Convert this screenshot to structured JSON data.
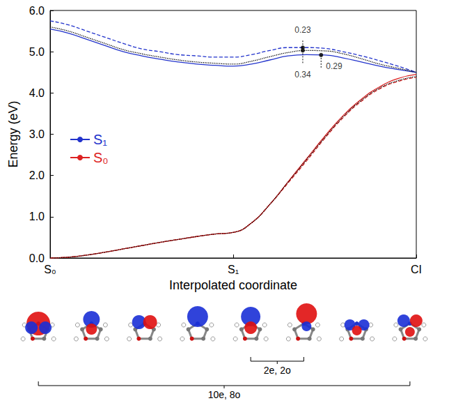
{
  "chart_data": {
    "type": "line",
    "x_label": "Interpolated coordinate",
    "y_label": "Energy (eV)",
    "xlim": [
      0,
      2
    ],
    "xticks": [
      {
        "value": 0,
        "label": "S₀"
      },
      {
        "value": 1,
        "label": "S₁"
      },
      {
        "value": 2,
        "label": "CI"
      }
    ],
    "ylim": [
      0,
      6
    ],
    "yticks": [
      {
        "value": 0,
        "label": "0.0"
      },
      {
        "value": 1,
        "label": "1.0"
      },
      {
        "value": 2,
        "label": "2.0"
      },
      {
        "value": 3,
        "label": "3.0"
      },
      {
        "value": 4,
        "label": "4.0"
      },
      {
        "value": 5,
        "label": "5.0"
      },
      {
        "value": 6,
        "label": "6.0"
      }
    ],
    "legend": "left",
    "x": [
      0,
      0.1,
      0.2,
      0.3,
      0.4,
      0.5,
      0.6,
      0.7,
      0.8,
      0.9,
      1.0,
      1.1,
      1.2,
      1.3,
      1.4,
      1.5,
      1.6,
      1.7,
      1.8,
      1.9,
      2.0
    ],
    "series": [
      {
        "name": "S₁",
        "color": "#2233cc",
        "line_style": "solid",
        "values": [
          5.55,
          5.45,
          5.3,
          5.15,
          5.0,
          4.9,
          4.82,
          4.75,
          4.7,
          4.67,
          4.65,
          4.7,
          4.8,
          4.9,
          4.93,
          4.92,
          4.85,
          4.75,
          4.65,
          4.57,
          4.5
        ]
      },
      {
        "name": "S₁",
        "color": "#2233cc",
        "line_style": "dashed",
        "values": [
          5.75,
          5.65,
          5.5,
          5.35,
          5.2,
          5.07,
          5.0,
          4.93,
          4.9,
          4.87,
          4.87,
          4.93,
          5.03,
          5.1,
          5.1,
          5.08,
          5.0,
          4.9,
          4.78,
          4.65,
          4.5
        ]
      },
      {
        "name": "S₁",
        "color": "#000000",
        "line_style": "dotted",
        "values": [
          5.6,
          5.5,
          5.35,
          5.2,
          5.05,
          4.95,
          4.87,
          4.8,
          4.75,
          4.72,
          4.7,
          4.77,
          4.88,
          4.98,
          5.03,
          5.02,
          4.95,
          4.83,
          4.7,
          4.6,
          4.5
        ]
      },
      {
        "name": "S₀",
        "color": "#dd2222",
        "line_style": "solid",
        "values": [
          0.0,
          0.02,
          0.07,
          0.14,
          0.22,
          0.3,
          0.38,
          0.45,
          0.52,
          0.58,
          0.62,
          0.85,
          1.3,
          1.85,
          2.4,
          2.95,
          3.45,
          3.85,
          4.15,
          4.35,
          4.45
        ]
      },
      {
        "name": "S₀",
        "color": "#dd2222",
        "line_style": "dashed",
        "values": [
          0.0,
          0.02,
          0.07,
          0.14,
          0.22,
          0.3,
          0.38,
          0.45,
          0.52,
          0.58,
          0.62,
          0.85,
          1.3,
          1.82,
          2.35,
          2.9,
          3.4,
          3.8,
          4.1,
          4.28,
          4.38
        ]
      },
      {
        "name": "S₀",
        "color": "#000000",
        "line_style": "dotted",
        "values": [
          0.0,
          0.02,
          0.07,
          0.14,
          0.22,
          0.3,
          0.38,
          0.45,
          0.52,
          0.58,
          0.62,
          0.85,
          1.3,
          1.84,
          2.38,
          2.92,
          3.42,
          3.82,
          4.12,
          4.3,
          4.4
        ]
      }
    ],
    "annotations": [
      {
        "x": 1.38,
        "y": 5.1,
        "label": "0.23"
      },
      {
        "x": 1.38,
        "y": 5.03,
        "label": "0.34"
      },
      {
        "x": 1.48,
        "y": 4.92,
        "label": "0.29"
      }
    ],
    "active_spaces": [
      {
        "label": "2e, 2o",
        "orbitals": [
          5,
          6
        ]
      },
      {
        "label": "10e, 8o",
        "orbitals": [
          1,
          8
        ]
      }
    ]
  }
}
